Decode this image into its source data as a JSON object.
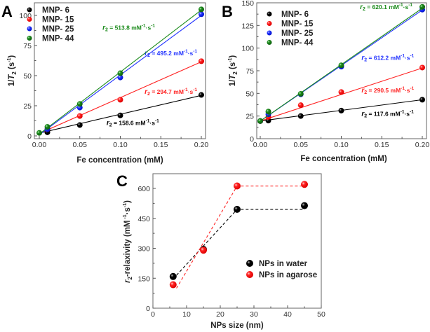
{
  "chart_data": [
    {
      "id": "A",
      "type": "scatter",
      "panel_label": "A",
      "xlabel": "Fe concentration (mM)",
      "ylabel": "1/T2 (s-1)",
      "ylabel_parts": {
        "prefix": "1/",
        "italic": "T",
        "sub": "2",
        "suffix": " (s",
        "sup": "-1",
        "close": ")"
      },
      "xlim": [
        0,
        0.2
      ],
      "ylim": [
        0,
        108
      ],
      "xticks": [
        0.0,
        0.05,
        0.1,
        0.15,
        0.2
      ],
      "xtick_labels": [
        "0.00",
        "0.05",
        "0.10",
        "0.15",
        "0.20"
      ],
      "yticks": [
        0,
        25,
        50,
        75,
        100
      ],
      "ytick_labels": [
        "0",
        "25",
        "50",
        "75",
        "100"
      ],
      "legend_placement": "top-left",
      "fit_lines": true,
      "series": [
        {
          "name": "MNP- 6",
          "color": "#000000",
          "x": [
            0.01,
            0.05,
            0.1,
            0.2
          ],
          "y": [
            3,
            9,
            17,
            34
          ],
          "fit": [
            [
              0.0,
              2.3
            ],
            [
              0.2,
              33.6
            ]
          ],
          "annotation": {
            "prefix": "r",
            "sub": "2",
            "text": " = 158.6 mM",
            "sup1": "-1",
            "mid": "·s",
            "sup2": "-1",
            "at": [
              0.083,
              9
            ]
          }
        },
        {
          "name": "MNP- 15",
          "color": "#ff2222",
          "x": [
            0.01,
            0.05,
            0.1,
            0.2
          ],
          "y": [
            5.5,
            16.5,
            30,
            62
          ],
          "fit": [
            [
              0.0,
              2.0
            ],
            [
              0.2,
              61.5
            ]
          ],
          "annotation": {
            "prefix": "r",
            "sub": "2",
            "text": " = 294.7 mM",
            "sup1": "-1",
            "mid": "·s",
            "sup2": "-1",
            "at": [
              0.13,
              35
            ]
          }
        },
        {
          "name": "MNP- 25",
          "color": "#2233ff",
          "x": [
            0.01,
            0.05,
            0.1,
            0.2
          ],
          "y": [
            5.5,
            23.5,
            48.5,
            101
          ],
          "fit": [
            [
              0.0,
              1.0
            ],
            [
              0.2,
              100
            ]
          ],
          "annotation": {
            "prefix": "r",
            "sub": "2",
            "text": " = 495.2 mM",
            "sup1": "-1",
            "mid": "·s",
            "sup2": "-1",
            "at": [
              0.13,
              67
            ]
          }
        },
        {
          "name": "MNP- 44",
          "color": "#1a8a1a",
          "x": [
            0.0,
            0.01,
            0.05,
            0.1,
            0.2
          ],
          "y": [
            2.5,
            7.5,
            26.5,
            52,
            105
          ],
          "fit": [
            [
              0.0,
              1.5
            ],
            [
              0.2,
              104.5
            ]
          ],
          "annotation": {
            "prefix": "r",
            "sub": "2",
            "text": " = 513.8 mM",
            "sup1": "-1",
            "mid": "·s",
            "sup2": "-1",
            "at": [
              0.078,
              88
            ]
          }
        }
      ]
    },
    {
      "id": "B",
      "type": "scatter",
      "panel_label": "B",
      "xlabel": "Fe concentration (mM)",
      "ylabel": "1/T2 (s-1)",
      "ylabel_parts": {
        "prefix": "1/",
        "italic": "T",
        "sub": "2",
        "suffix": " (s",
        "sup": "-1",
        "close": ")"
      },
      "xlim": [
        0,
        0.2
      ],
      "ylim": [
        0,
        150
      ],
      "xticks": [
        0.0,
        0.05,
        0.1,
        0.15,
        0.2
      ],
      "xtick_labels": [
        "0.00",
        "0.05",
        "0.10",
        "0.15",
        "0.20"
      ],
      "yticks": [
        0,
        25,
        50,
        75,
        100,
        125,
        150
      ],
      "ytick_labels": [
        "0",
        "25",
        "50",
        "75",
        "100",
        "125",
        "150"
      ],
      "legend_placement": "top-left",
      "fit_lines": true,
      "series": [
        {
          "name": "MNP- 6",
          "color": "#000000",
          "x": [
            0.0,
            0.01,
            0.05,
            0.1,
            0.2
          ],
          "y": [
            19.5,
            20,
            25,
            31,
            43
          ],
          "fit": [
            [
              0.0,
              19.5
            ],
            [
              0.2,
              43
            ]
          ],
          "annotation": {
            "prefix": "r",
            "sub": "2",
            "text": " = 117.6 mM",
            "sup1": "-1",
            "mid": "·s",
            "sup2": "-1",
            "at": [
              0.125,
              25
            ]
          }
        },
        {
          "name": "MNP- 15",
          "color": "#ff2222",
          "x": [
            0.0,
            0.01,
            0.05,
            0.1,
            0.2
          ],
          "y": [
            19.5,
            24,
            37,
            51.5,
            78.5
          ],
          "fit": [
            [
              0.0,
              19.5
            ],
            [
              0.2,
              78
            ]
          ],
          "annotation": {
            "prefix": "r",
            "sub": "2",
            "text": " = 290.5 mM",
            "sup1": "-1",
            "mid": "·s",
            "sup2": "-1",
            "at": [
              0.125,
              51
            ]
          }
        },
        {
          "name": "MNP- 25",
          "color": "#2233ff",
          "x": [
            0.0,
            0.01,
            0.05,
            0.1,
            0.2
          ],
          "y": [
            19.5,
            27,
            49,
            79.5,
            142.5
          ],
          "fit": [
            [
              0.0,
              19.5
            ],
            [
              0.2,
              142
            ]
          ],
          "annotation": {
            "prefix": "r",
            "sub": "2",
            "text": " = 612.2 mM",
            "sup1": "-1",
            "mid": "·s",
            "sup2": "-1",
            "at": [
              0.125,
              87
            ]
          }
        },
        {
          "name": "MNP- 44",
          "color": "#1a8a1a",
          "x": [
            0.0,
            0.01,
            0.05,
            0.1,
            0.2
          ],
          "y": [
            19.5,
            30,
            49.5,
            81,
            145.5
          ],
          "fit": [
            [
              0.0,
              19.5
            ],
            [
              0.2,
              144
            ]
          ],
          "annotation": {
            "prefix": "r",
            "sub": "2",
            "text": " = 620.1 mM",
            "sup1": "-1",
            "mid": "·s",
            "sup2": "-1",
            "at": [
              0.123,
              143
            ]
          }
        }
      ]
    },
    {
      "id": "C",
      "type": "line",
      "panel_label": "C",
      "xlabel": "NPs size (nm)",
      "ylabel": "r2-relaxivity (mM-1·s-1)",
      "ylabel_parts": {
        "italic": "r",
        "sub": "2",
        "text": "-relaxivity (mM",
        "sup1": " -1",
        "mid": "·s",
        "sup2": "-1",
        "close": ")"
      },
      "xlim": [
        0,
        50
      ],
      "ylim": [
        0,
        680
      ],
      "xticks": [
        0,
        10,
        20,
        30,
        40,
        50
      ],
      "xtick_labels": [
        "0",
        "10",
        "20",
        "30",
        "40",
        "50"
      ],
      "yticks": [
        0,
        150,
        300,
        450,
        600
      ],
      "ytick_labels": [
        "0",
        "150",
        "300",
        "450",
        "600"
      ],
      "legend_placement": "center-right",
      "line_style": "dashed",
      "series": [
        {
          "name": "NPs in water",
          "color": "#000000",
          "x": [
            6,
            15,
            25,
            45
          ],
          "y": [
            158.6,
            294.7,
            495.2,
            513.8
          ],
          "trend": [
            [
              7,
              165
            ],
            [
              25,
              495
            ],
            [
              45,
              495
            ]
          ]
        },
        {
          "name": "NPs in agarose",
          "color": "#ff2222",
          "x": [
            6,
            15,
            25,
            45
          ],
          "y": [
            117.6,
            290.5,
            612.2,
            620.1
          ],
          "trend": [
            [
              7,
              100
            ],
            [
              25,
              612
            ],
            [
              45,
              612
            ]
          ]
        }
      ]
    }
  ]
}
